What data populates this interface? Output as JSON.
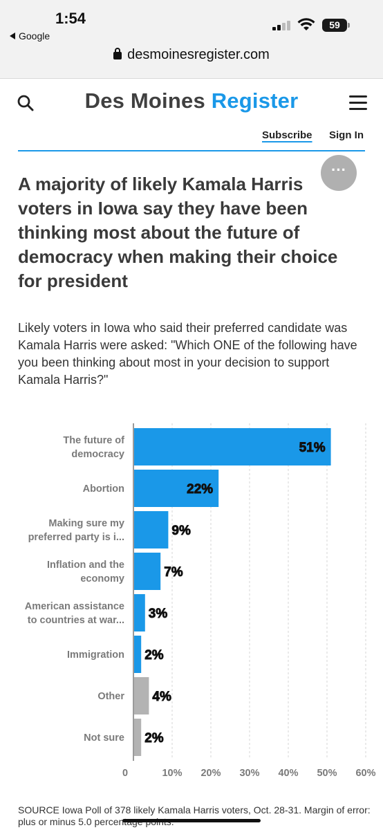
{
  "status_bar": {
    "time": "1:54",
    "back_label": "Google",
    "battery": "59"
  },
  "address_bar": {
    "url": "desmoinesregister.com"
  },
  "site_header": {
    "logo_part1": "Des Moines",
    "logo_part2": "Register",
    "subscribe_label": "Subscribe",
    "signin_label": "Sign In",
    "more_label": "···",
    "accent_color": "#1a98e8"
  },
  "article": {
    "headline": "A majority of likely Kamala Harris voters in Iowa say they have been thinking most about the future of democracy when making their choice for president",
    "dek": "Likely voters in Iowa who said their preferred candidate was Kamala Harris were asked: \"Which ONE of the following have you been thinking about most in your decision to support Kamala Harris?\"",
    "source_note": "SOURCE Iowa Poll of 378 likely Kamala Harris voters, Oct. 28-31. Margin of error: plus or minus 5.0 percentage points."
  },
  "chart_data": {
    "type": "bar",
    "orientation": "horizontal",
    "xlim": [
      0,
      60
    ],
    "ticks": [
      0,
      10,
      20,
      30,
      40,
      50,
      60
    ],
    "tick_labels": [
      "0",
      "10%",
      "20%",
      "30%",
      "40%",
      "50%",
      "60%"
    ],
    "grid": true,
    "bars": [
      {
        "label_lines": [
          "The future of",
          "democracy"
        ],
        "value": 51,
        "value_label": "51%",
        "color": "#1a98e8"
      },
      {
        "label_lines": [
          "Abortion"
        ],
        "value": 22,
        "value_label": "22%",
        "color": "#1a98e8"
      },
      {
        "label_lines": [
          "Making sure my",
          "preferred party is i..."
        ],
        "value": 9,
        "value_label": "9%",
        "color": "#1a98e8"
      },
      {
        "label_lines": [
          "Inflation and the",
          "economy"
        ],
        "value": 7,
        "value_label": "7%",
        "color": "#1a98e8"
      },
      {
        "label_lines": [
          "American assistance",
          "to countries at war..."
        ],
        "value": 3,
        "value_label": "3%",
        "color": "#1a98e8"
      },
      {
        "label_lines": [
          "Immigration"
        ],
        "value": 2,
        "value_label": "2%",
        "color": "#1a98e8"
      },
      {
        "label_lines": [
          "Other"
        ],
        "value": 4,
        "value_label": "4%",
        "color": "#b3b3b3"
      },
      {
        "label_lines": [
          "Not sure"
        ],
        "value": 2,
        "value_label": "2%",
        "color": "#b3b3b3"
      }
    ]
  }
}
